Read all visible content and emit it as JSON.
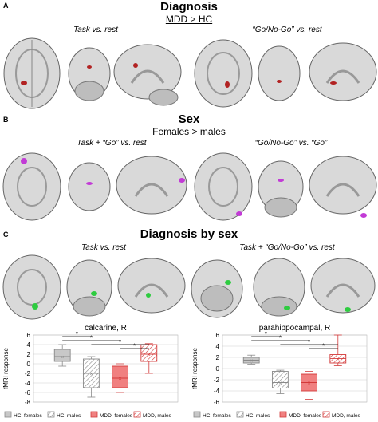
{
  "panels": [
    {
      "letter": "A",
      "title": "Diagnosis",
      "contrast": "MDD > HC",
      "captions": [
        "Task vs. rest",
        "“Go/No-Go” vs. rest"
      ],
      "blob_color": "#b22222"
    },
    {
      "letter": "B",
      "title": "Sex",
      "contrast": "Females > males",
      "captions": [
        "Task + “Go” vs. rest",
        "“Go/No-Go” vs. “Go”"
      ],
      "blob_color": "#c23bd6"
    },
    {
      "letter": "C",
      "title": "Diagnosis by sex",
      "captions": [
        "Task vs. rest",
        "Task + “Go/No-Go” vs. rest"
      ],
      "blob_color": "#2ecc40"
    }
  ],
  "chart_data": [
    {
      "type": "box",
      "title": "calcarine, R",
      "ylabel": "fMRI response",
      "ylim": [
        -8,
        6
      ],
      "yticks": [
        6,
        4,
        2,
        0,
        -2,
        -4,
        -6,
        -8
      ],
      "grid": true,
      "groups": [
        {
          "name": "HC, females",
          "whisker_low": -0.5,
          "q1": 0.5,
          "median": 1.5,
          "q3": 3.0,
          "whisker_high": 4.0,
          "mean": 1.5
        },
        {
          "name": "HC, males",
          "whisker_low": -7.0,
          "q1": -5.0,
          "median": -2.0,
          "q3": 1.0,
          "whisker_high": 1.5,
          "mean": -2.0
        },
        {
          "name": "MDD, females",
          "whisker_low": -6.0,
          "q1": -5.0,
          "median": -3.0,
          "q3": -0.5,
          "whisker_high": 0.0,
          "mean": -3.0
        },
        {
          "name": "MDD, males",
          "whisker_low": -2.0,
          "q1": 0.5,
          "median": 2.0,
          "q3": 4.0,
          "whisker_high": 4.2,
          "mean": 2.0
        }
      ],
      "brackets": [
        {
          "from": 1,
          "to": 2,
          "level": 1
        },
        {
          "from": 1,
          "to": 3,
          "level": 2
        },
        {
          "from": 2,
          "to": 4,
          "level": 3
        },
        {
          "from": 3,
          "to": 4,
          "level": 4
        }
      ],
      "significance_marker": "*"
    },
    {
      "type": "box",
      "title": "parahippocampal, R",
      "ylabel": "fMRI response",
      "ylim": [
        -6,
        6
      ],
      "yticks": [
        6,
        4,
        2,
        0,
        -2,
        -4,
        -6
      ],
      "grid": true,
      "groups": [
        {
          "name": "HC, females",
          "whisker_low": 0.8,
          "q1": 1.0,
          "median": 1.5,
          "q3": 2.0,
          "whisker_high": 2.4,
          "mean": 1.5
        },
        {
          "name": "HC, males",
          "whisker_low": -4.5,
          "q1": -3.5,
          "median": -2.5,
          "q3": -0.5,
          "whisker_high": -0.3,
          "mean": -2.5
        },
        {
          "name": "MDD, females",
          "whisker_low": -5.5,
          "q1": -4.0,
          "median": -2.5,
          "q3": -1.0,
          "whisker_high": -0.5,
          "mean": -2.5
        },
        {
          "name": "MDD, males",
          "whisker_low": 0.5,
          "q1": 1.0,
          "median": 1.8,
          "q3": 2.5,
          "whisker_high": 6.0,
          "mean": 1.8
        }
      ],
      "brackets": [
        {
          "from": 1,
          "to": 2,
          "level": 1
        },
        {
          "from": 1,
          "to": 3,
          "level": 2
        },
        {
          "from": 2,
          "to": 4,
          "level": 3
        },
        {
          "from": 3,
          "to": 4,
          "level": 4
        }
      ],
      "significance_marker": "*"
    }
  ],
  "legend": [
    {
      "label": "HC, females",
      "color": "#c8c8c8",
      "stroke": "#8a8a8a",
      "hatched": false
    },
    {
      "label": "HC, males",
      "color": "#ffffff",
      "stroke": "#8a8a8a",
      "hatched": true
    },
    {
      "label": "MDD, females",
      "color": "#f08080",
      "stroke": "#d33a3a",
      "hatched": false
    },
    {
      "label": "MDD, males",
      "color": "#ffffff",
      "stroke": "#d33a3a",
      "hatched": true
    }
  ]
}
